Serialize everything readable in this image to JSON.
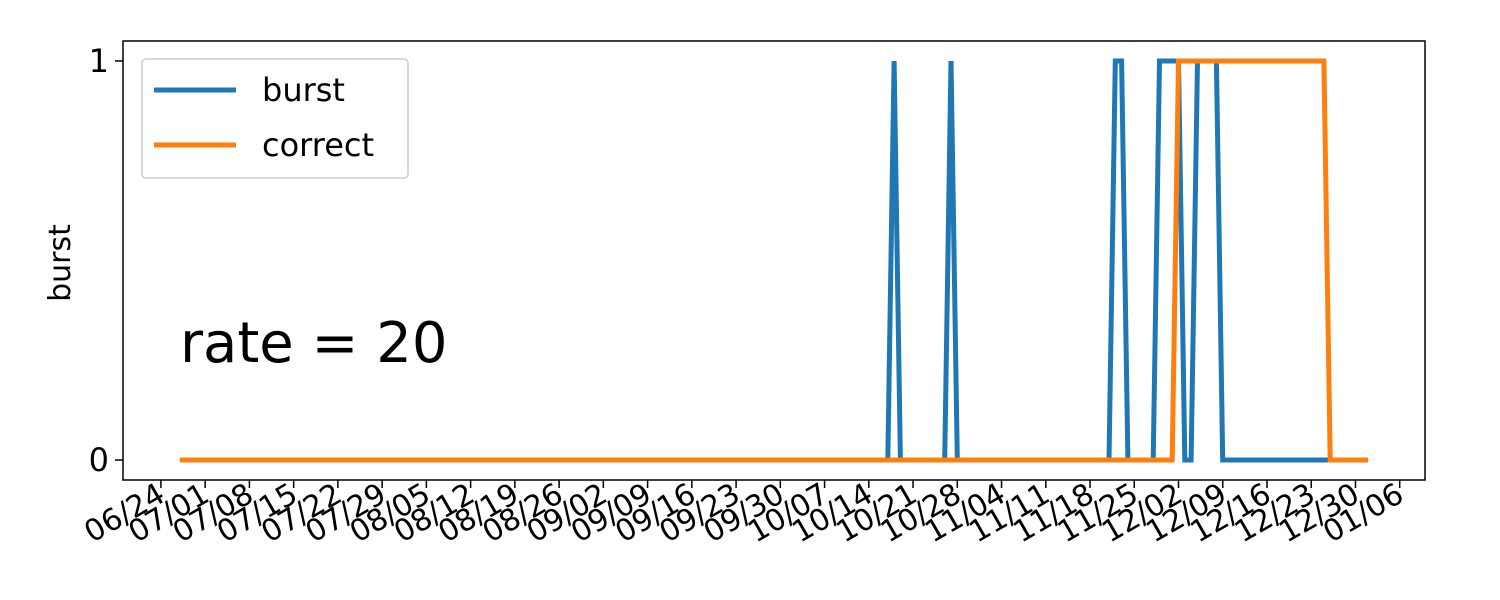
{
  "chart_data": {
    "type": "line",
    "ylabel": "burst",
    "annotation": "rate = 20",
    "ylim": [
      -0.05,
      1.05
    ],
    "yticks": [
      0,
      1
    ],
    "xlim": [
      "2018-06-18",
      "2019-01-10"
    ],
    "xtick_labels": [
      "06/24",
      "07/01",
      "07/08",
      "07/15",
      "07/22",
      "07/29",
      "08/05",
      "08/12",
      "08/19",
      "08/26",
      "09/02",
      "09/09",
      "09/16",
      "09/23",
      "09/30",
      "10/07",
      "10/14",
      "10/21",
      "10/28",
      "11/04",
      "11/11",
      "11/18",
      "11/25",
      "12/02",
      "12/09",
      "12/16",
      "12/23",
      "12/30",
      "01/06"
    ],
    "xtick_dates": [
      "2018-06-24",
      "2018-07-01",
      "2018-07-08",
      "2018-07-15",
      "2018-07-22",
      "2018-07-29",
      "2018-08-05",
      "2018-08-12",
      "2018-08-19",
      "2018-08-26",
      "2018-09-02",
      "2018-09-09",
      "2018-09-16",
      "2018-09-23",
      "2018-09-30",
      "2018-10-07",
      "2018-10-14",
      "2018-10-21",
      "2018-10-28",
      "2018-11-04",
      "2018-11-11",
      "2018-11-18",
      "2018-11-25",
      "2018-12-02",
      "2018-12-09",
      "2018-12-16",
      "2018-12-23",
      "2018-12-30",
      "2019-01-06"
    ],
    "legend_position": "top-left",
    "series": [
      {
        "name": "burst",
        "color": "#1f77b4",
        "points": [
          [
            "2018-06-27",
            0
          ],
          [
            "2018-10-17",
            0
          ],
          [
            "2018-10-18",
            1
          ],
          [
            "2018-10-19",
            0
          ],
          [
            "2018-10-26",
            0
          ],
          [
            "2018-10-27",
            1
          ],
          [
            "2018-10-28",
            0
          ],
          [
            "2018-11-21",
            0
          ],
          [
            "2018-11-22",
            1
          ],
          [
            "2018-11-23",
            1
          ],
          [
            "2018-11-24",
            0
          ],
          [
            "2018-11-28",
            0
          ],
          [
            "2018-11-29",
            1
          ],
          [
            "2018-12-02",
            1
          ],
          [
            "2018-12-03",
            0
          ],
          [
            "2018-12-04",
            0
          ],
          [
            "2018-12-05",
            1
          ],
          [
            "2018-12-08",
            1
          ],
          [
            "2018-12-09",
            0
          ],
          [
            "2018-12-26",
            0
          ],
          [
            "2019-01-01",
            0
          ]
        ]
      },
      {
        "name": "correct",
        "color": "#ff7f0e",
        "points": [
          [
            "2018-06-27",
            0
          ],
          [
            "2018-12-01",
            0
          ],
          [
            "2018-12-02",
            1
          ],
          [
            "2018-12-25",
            1
          ],
          [
            "2018-12-26",
            0
          ],
          [
            "2019-01-01",
            0
          ]
        ]
      }
    ]
  }
}
